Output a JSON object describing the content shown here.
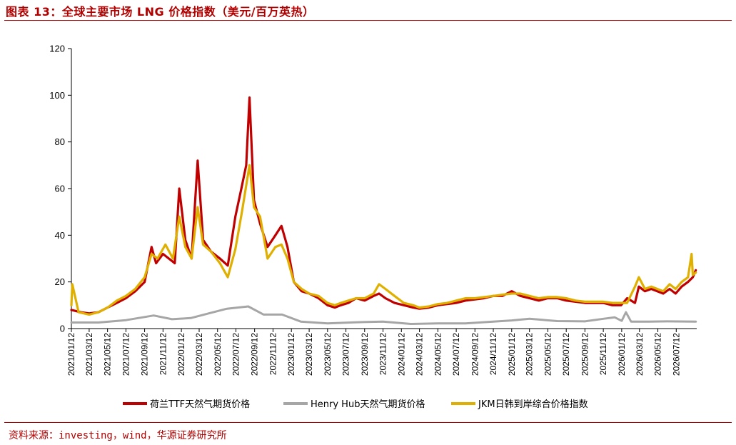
{
  "header": {
    "title": "图表 13：全球主要市场 LNG 价格指数（美元/百万英热）"
  },
  "footer": {
    "source": "资料来源：investing，wind，华源证券研究所"
  },
  "chart_data": {
    "type": "line",
    "ylim": [
      0,
      120
    ],
    "yticks": [
      "0",
      "20",
      "40",
      "60",
      "80",
      "100",
      "120"
    ],
    "xticks": [
      "2021/01/12",
      "2021/03/12",
      "2021/05/12",
      "2021/07/12",
      "2021/09/12",
      "2021/11/12",
      "2022/01/12",
      "2022/03/12",
      "2022/05/12",
      "2022/07/12",
      "2022/09/12",
      "2022/11/12",
      "2023/01/12",
      "2023/03/12",
      "2023/05/12",
      "2023/07/12",
      "2023/09/12",
      "2023/11/12",
      "2024/01/12",
      "2024/03/12",
      "2024/05/12",
      "2024/07/12",
      "2024/09/12",
      "2024/11/12",
      "2025/01/12",
      "2025/03/12",
      "2025/05/12",
      "2025/07/12",
      "2025/09/12",
      "2025/11/12",
      "2026/01/12",
      "2026/03/12",
      "2026/05/12",
      "2026/07/12"
    ],
    "grid": false,
    "legend_position": "bottom",
    "colors": {
      "ttf": "#c00000",
      "henry": "#a6a6a6",
      "jkm": "#e0b000"
    },
    "series": [
      {
        "key": "ttf",
        "name": "荷兰TTF天然气期货价格",
        "x": [
          "2021/01/12",
          "2021/02/12",
          "2021/03/12",
          "2021/04/12",
          "2021/05/12",
          "2021/06/12",
          "2021/07/12",
          "2021/08/12",
          "2021/09/12",
          "2021/10/05",
          "2021/10/20",
          "2021/11/12",
          "2021/12/21",
          "2022/01/05",
          "2022/01/25",
          "2022/02/15",
          "2022/03/07",
          "2022/03/25",
          "2022/04/20",
          "2022/05/20",
          "2022/06/15",
          "2022/07/10",
          "2022/07/30",
          "2022/08/15",
          "2022/08/26",
          "2022/09/10",
          "2022/09/30",
          "2022/10/25",
          "2022/11/20",
          "2022/12/10",
          "2022/12/30",
          "2023/01/20",
          "2023/02/15",
          "2023/03/12",
          "2023/04/12",
          "2023/05/12",
          "2023/06/05",
          "2023/06/25",
          "2023/07/20",
          "2023/08/15",
          "2023/09/12",
          "2023/10/12",
          "2023/10/30",
          "2023/11/20",
          "2023/12/20",
          "2024/01/20",
          "2024/02/20",
          "2024/03/12",
          "2024/04/12",
          "2024/05/12",
          "2024/06/12",
          "2024/07/12",
          "2024/08/12",
          "2024/09/12",
          "2024/10/12",
          "2024/11/12",
          "2024/12/12",
          "2025/01/12",
          "2025/02/10",
          "2025/03/12",
          "2025/04/12",
          "2025/05/12",
          "2025/06/12",
          "2025/07/12",
          "2025/08/12",
          "2025/09/12",
          "2025/10/12",
          "2025/11/12",
          "2025/12/12",
          "2026/01/10",
          "2026/01/30",
          "2026/02/25",
          "2026/03/10",
          "2026/03/30",
          "2026/04/20",
          "2026/05/10",
          "2026/05/30",
          "2026/06/20",
          "2026/07/10",
          "2026/07/30",
          "2026/08/20",
          "2026/09/05",
          "2026/09/15"
        ],
        "values": [
          8,
          7,
          6.5,
          7,
          9,
          11,
          13,
          16,
          20,
          35,
          28,
          32,
          28,
          60,
          38,
          30,
          72,
          38,
          33,
          30,
          27,
          48,
          60,
          70,
          99,
          55,
          45,
          35,
          40,
          44,
          35,
          20,
          16,
          15,
          13,
          10,
          9,
          10,
          11,
          13,
          12,
          14,
          15,
          13,
          11,
          10,
          9,
          8.5,
          9,
          10,
          10.5,
          11,
          12,
          12.5,
          13,
          14,
          14,
          16,
          14,
          13,
          12,
          13,
          13,
          12,
          11.5,
          11,
          11,
          11,
          10,
          10,
          13,
          11,
          18,
          16,
          17,
          16,
          15,
          17,
          15,
          18,
          20,
          22,
          25
        ]
      },
      {
        "key": "henry",
        "name": "Henry Hub天然气期货价格",
        "x": [
          "2021/01/12",
          "2021/04/12",
          "2021/07/12",
          "2021/10/12",
          "2021/12/12",
          "2022/02/12",
          "2022/04/12",
          "2022/06/12",
          "2022/08/22",
          "2022/10/12",
          "2022/12/12",
          "2023/02/12",
          "2023/05/12",
          "2023/08/12",
          "2023/11/12",
          "2024/02/12",
          "2024/05/12",
          "2024/08/12",
          "2024/11/12",
          "2025/01/12",
          "2025/03/12",
          "2025/06/12",
          "2025/09/12",
          "2025/11/12",
          "2025/12/20",
          "2026/01/12",
          "2026/01/26",
          "2026/02/12",
          "2026/04/12",
          "2026/06/12",
          "2026/09/15"
        ],
        "values": [
          2.6,
          2.6,
          3.6,
          5.6,
          4,
          4.5,
          6.5,
          8.5,
          9.5,
          6,
          6,
          3,
          2.2,
          2.7,
          3,
          2,
          2.2,
          2.2,
          3,
          3.5,
          4.2,
          3.2,
          3.1,
          4.2,
          4.8,
          3.3,
          7,
          3,
          3,
          3.1,
          3
        ]
      },
      {
        "key": "jkm",
        "name": "JKM日韩到岸综合价格指数",
        "x": [
          "2021/01/12",
          "2021/01/15",
          "2021/02/05",
          "2021/03/12",
          "2021/04/12",
          "2021/05/12",
          "2021/06/12",
          "2021/07/12",
          "2021/08/12",
          "2021/09/12",
          "2021/10/05",
          "2021/10/25",
          "2021/11/20",
          "2021/12/15",
          "2022/01/05",
          "2022/01/25",
          "2022/02/15",
          "2022/03/07",
          "2022/03/25",
          "2022/04/20",
          "2022/05/20",
          "2022/06/15",
          "2022/07/10",
          "2022/08/01",
          "2022/08/26",
          "2022/09/10",
          "2022/09/30",
          "2022/10/25",
          "2022/11/20",
          "2022/12/10",
          "2022/12/30",
          "2023/01/20",
          "2023/02/15",
          "2023/03/12",
          "2023/04/12",
          "2023/05/12",
          "2023/06/05",
          "2023/06/25",
          "2023/07/20",
          "2023/08/15",
          "2023/09/12",
          "2023/10/12",
          "2023/10/30",
          "2023/11/20",
          "2023/12/20",
          "2024/01/20",
          "2024/02/20",
          "2024/03/12",
          "2024/04/12",
          "2024/05/12",
          "2024/06/12",
          "2024/07/12",
          "2024/08/12",
          "2024/09/12",
          "2024/10/12",
          "2024/11/12",
          "2024/12/12",
          "2025/01/12",
          "2025/02/10",
          "2025/03/12",
          "2025/04/12",
          "2025/05/12",
          "2025/06/12",
          "2025/07/12",
          "2025/08/12",
          "2025/09/12",
          "2025/10/12",
          "2025/11/12",
          "2025/12/12",
          "2026/01/10",
          "2026/01/30",
          "2026/02/25",
          "2026/03/10",
          "2026/03/30",
          "2026/04/20",
          "2026/05/10",
          "2026/05/30",
          "2026/06/20",
          "2026/07/10",
          "2026/07/30",
          "2026/08/20",
          "2026/09/01",
          "2026/09/05",
          "2026/09/15"
        ],
        "values": [
          10,
          19,
          7,
          6,
          7,
          9,
          12,
          14,
          17,
          22,
          32,
          30,
          36,
          30,
          48,
          35,
          30,
          52,
          36,
          33,
          28,
          22,
          34,
          50,
          70,
          52,
          48,
          30,
          35,
          36,
          30,
          20,
          17,
          15,
          14,
          11,
          10,
          11,
          12,
          13,
          13,
          15,
          19,
          17,
          14,
          11,
          10,
          9,
          9.5,
          10.5,
          11,
          12,
          13,
          13,
          13.5,
          14,
          14.5,
          15,
          15,
          14,
          13,
          13.5,
          13.5,
          13,
          12,
          11.5,
          11.5,
          11.5,
          11,
          11,
          11,
          18,
          22,
          17,
          18,
          17,
          16,
          19,
          17,
          20,
          22,
          32,
          23,
          24
        ]
      }
    ]
  }
}
